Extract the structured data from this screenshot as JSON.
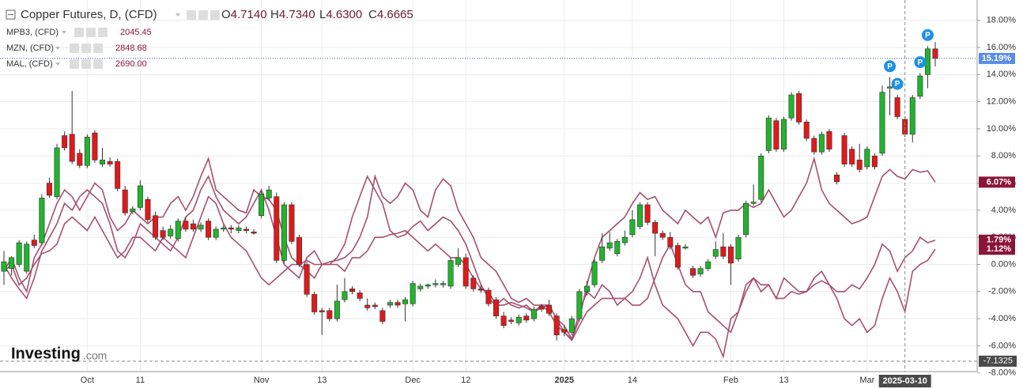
{
  "chart_data": {
    "type": "candlestick",
    "title": "Copper Futures, D, (CFD)",
    "ohlc_labels": [
      {
        "key": "O",
        "value": "4.7140"
      },
      {
        "key": "H",
        "value": "4.7340"
      },
      {
        "key": "L",
        "value": "4.6300"
      },
      {
        "key": "C",
        "value": "4.6665"
      }
    ],
    "categories": [
      null,
      null,
      null,
      null,
      null,
      null,
      null,
      null,
      null,
      null,
      null,
      "Oct",
      null,
      null,
      null,
      null,
      null,
      null,
      "11",
      null,
      null,
      null,
      null,
      null,
      null,
      null,
      null,
      null,
      null,
      null,
      null,
      null,
      null,
      null,
      "Nov",
      null,
      null,
      null,
      null,
      null,
      null,
      null,
      "13",
      null,
      null,
      null,
      null,
      null,
      null,
      null,
      null,
      null,
      null,
      null,
      "Dec",
      null,
      null,
      null,
      null,
      null,
      null,
      "12",
      null,
      null,
      null,
      null,
      null,
      null,
      null,
      null,
      null,
      null,
      null,
      null,
      "2025",
      null,
      null,
      null,
      null,
      null,
      null,
      null,
      null,
      "14",
      null,
      null,
      null,
      null,
      null,
      null,
      null,
      null,
      null,
      null,
      null,
      null,
      "Feb",
      null,
      null,
      null,
      null,
      null,
      null,
      "13",
      null,
      null,
      null,
      null,
      null,
      null,
      null,
      null,
      null,
      null,
      "Mar",
      null,
      null,
      null,
      null,
      null,
      null,
      null,
      null,
      null
    ],
    "ohlc": [
      [
        -0.5,
        1.0,
        -1.5,
        0.2
      ],
      [
        -0.3,
        0.6,
        -0.8,
        0.5
      ],
      [
        0.0,
        1.8,
        -0.2,
        1.6
      ],
      [
        -0.5,
        1.7,
        -0.7,
        1.5
      ],
      [
        1.8,
        2.2,
        1.2,
        1.4
      ],
      [
        1.6,
        5.2,
        1.4,
        4.9
      ],
      [
        6.0,
        6.4,
        4.9,
        5.1
      ],
      [
        5.0,
        8.9,
        4.8,
        8.6
      ],
      [
        9.5,
        9.8,
        8.4,
        8.6
      ],
      [
        9.6,
        12.8,
        7.4,
        7.6
      ],
      [
        8.2,
        8.5,
        7.1,
        7.3
      ],
      [
        7.3,
        9.6,
        7.1,
        9.4
      ],
      [
        9.7,
        9.9,
        7.5,
        7.7
      ],
      [
        7.4,
        8.6,
        7.2,
        7.7
      ],
      [
        7.6,
        7.9,
        7.2,
        7.4
      ],
      [
        7.6,
        7.8,
        5.4,
        5.6
      ],
      [
        5.5,
        5.8,
        3.6,
        3.8
      ],
      [
        3.9,
        4.3,
        3.7,
        4.1
      ],
      [
        4.2,
        6.2,
        4.0,
        5.8
      ],
      [
        4.8,
        5.0,
        3.1,
        3.3
      ],
      [
        3.6,
        3.9,
        1.8,
        2.0
      ],
      [
        2.5,
        2.8,
        1.8,
        2.0
      ],
      [
        2.1,
        2.9,
        1.9,
        2.6
      ],
      [
        1.9,
        3.4,
        1.7,
        3.2
      ],
      [
        3.2,
        3.5,
        2.4,
        2.6
      ],
      [
        3.0,
        3.3,
        2.4,
        2.6
      ],
      [
        2.6,
        3.1,
        2.4,
        2.9
      ],
      [
        3.2,
        3.4,
        1.8,
        2.0
      ],
      [
        2.0,
        2.8,
        1.8,
        2.6
      ],
      [
        2.6,
        2.9,
        2.4,
        2.7
      ],
      [
        2.7,
        2.9,
        2.3,
        2.6
      ],
      [
        2.5,
        2.9,
        2.3,
        2.7
      ],
      [
        2.6,
        2.8,
        2.3,
        2.5
      ],
      [
        2.4,
        2.6,
        2.2,
        2.3
      ],
      [
        3.6,
        5.4,
        3.4,
        5.2
      ],
      [
        4.9,
        5.8,
        4.7,
        5.5
      ],
      [
        5.0,
        5.3,
        0.1,
        0.3
      ],
      [
        0.3,
        4.6,
        0.1,
        4.4
      ],
      [
        4.4,
        4.6,
        1.5,
        1.7
      ],
      [
        2.0,
        2.2,
        -0.2,
        0.0
      ],
      [
        0.0,
        0.2,
        -2.4,
        -2.2
      ],
      [
        -2.2,
        -2.0,
        -3.7,
        -3.5
      ],
      [
        -3.4,
        -3.2,
        -5.2,
        -3.5
      ],
      [
        -3.4,
        -3.2,
        -4.2,
        -4.0
      ],
      [
        -4.0,
        -1.5,
        -4.2,
        -2.7
      ],
      [
        -2.6,
        -1.0,
        -2.8,
        -2.0
      ],
      [
        -1.8,
        -1.6,
        -2.2,
        -2.0
      ],
      [
        -2.1,
        -1.9,
        -2.7,
        -2.5
      ],
      [
        -3.0,
        -2.5,
        -3.4,
        -3.2
      ],
      [
        -3.0,
        -2.8,
        -3.3,
        -3.1
      ],
      [
        -3.4,
        -3.2,
        -4.4,
        -4.2
      ],
      [
        -3.0,
        -2.6,
        -3.2,
        -2.8
      ],
      [
        -2.8,
        -2.6,
        -3.2,
        -3.0
      ],
      [
        -2.9,
        -2.4,
        -4.2,
        -2.6
      ],
      [
        -2.9,
        -1.2,
        -3.1,
        -1.4
      ],
      [
        -1.8,
        -1.4,
        -2.0,
        -1.6
      ],
      [
        -1.6,
        -1.4,
        -1.8,
        -1.5
      ],
      [
        -1.5,
        -1.1,
        -1.7,
        -1.4
      ],
      [
        -1.5,
        -1.2,
        -1.7,
        -1.4
      ],
      [
        -1.6,
        0.5,
        -1.8,
        0.3
      ],
      [
        0.0,
        1.2,
        -0.2,
        0.5
      ],
      [
        0.5,
        0.8,
        -1.8,
        -1.6
      ],
      [
        -1.0,
        -0.8,
        -2.0,
        -1.8
      ],
      [
        -1.8,
        -1.5,
        -2.1,
        -1.9
      ],
      [
        -1.9,
        -1.7,
        -3.1,
        -2.9
      ],
      [
        -2.6,
        -2.4,
        -4.0,
        -3.8
      ],
      [
        -3.8,
        -3.5,
        -4.7,
        -4.5
      ],
      [
        -4.1,
        -3.9,
        -4.4,
        -4.2
      ],
      [
        -4.3,
        -3.7,
        -4.5,
        -3.9
      ],
      [
        -3.8,
        -3.6,
        -4.3,
        -4.1
      ],
      [
        -4.0,
        -3.1,
        -4.2,
        -3.3
      ],
      [
        -3.1,
        -2.9,
        -3.5,
        -3.3
      ],
      [
        -3.0,
        -2.6,
        -3.8,
        -3.6
      ],
      [
        -3.8,
        -3.6,
        -5.6,
        -5.2
      ],
      [
        -4.8,
        -4.5,
        -5.3,
        -5.0
      ],
      [
        -5.0,
        -3.8,
        -5.2,
        -4.0
      ],
      [
        -4.0,
        -1.8,
        -4.2,
        -2.0
      ],
      [
        -2.0,
        -1.2,
        -2.3,
        -1.6
      ],
      [
        -1.5,
        0.4,
        -1.7,
        0.2
      ],
      [
        0.3,
        2.3,
        0.1,
        1.3
      ],
      [
        1.2,
        2.4,
        1.0,
        1.6
      ],
      [
        0.8,
        1.9,
        0.6,
        1.7
      ],
      [
        1.6,
        2.5,
        1.4,
        2.0
      ],
      [
        2.2,
        4.0,
        2.0,
        3.3
      ],
      [
        2.8,
        4.6,
        2.6,
        4.4
      ],
      [
        4.4,
        4.6,
        2.9,
        3.1
      ],
      [
        3.1,
        3.3,
        0.6,
        2.3
      ],
      [
        2.3,
        2.5,
        1.8,
        2.0
      ],
      [
        2.0,
        2.4,
        1.1,
        1.3
      ],
      [
        1.4,
        1.6,
        -0.4,
        -0.2
      ],
      [
        1.2,
        1.5,
        1.1,
        1.3
      ],
      [
        -0.3,
        -0.1,
        -1.0,
        -0.8
      ],
      [
        -0.7,
        -0.1,
        -0.9,
        -0.3
      ],
      [
        -0.3,
        0.4,
        -0.5,
        0.2
      ],
      [
        0.6,
        1.7,
        0.4,
        1.1
      ],
      [
        1.3,
        2.3,
        0.4,
        0.6
      ],
      [
        1.3,
        1.5,
        -1.5,
        0.1
      ],
      [
        0.4,
        2.2,
        0.2,
        2.0
      ],
      [
        2.2,
        4.7,
        2.0,
        4.5
      ],
      [
        4.5,
        5.9,
        4.3,
        4.6
      ],
      [
        4.8,
        8.2,
        4.6,
        8.0
      ],
      [
        8.4,
        11.0,
        8.2,
        10.8
      ],
      [
        10.6,
        10.8,
        8.3,
        8.5
      ],
      [
        8.5,
        10.9,
        8.3,
        10.7
      ],
      [
        10.8,
        12.7,
        10.6,
        12.5
      ],
      [
        12.6,
        12.8,
        10.3,
        10.5
      ],
      [
        10.5,
        10.7,
        9.1,
        9.3
      ],
      [
        9.3,
        9.5,
        8.1,
        8.3
      ],
      [
        8.3,
        9.8,
        8.1,
        9.6
      ],
      [
        9.8,
        10.0,
        8.3,
        8.5
      ],
      [
        6.6,
        6.8,
        5.9,
        6.1
      ],
      [
        9.5,
        9.7,
        7.2,
        7.4
      ],
      [
        8.5,
        8.7,
        7.2,
        7.4
      ],
      [
        7.7,
        8.9,
        6.8,
        7.0
      ],
      [
        7.2,
        8.7,
        7.0,
        8.5
      ],
      [
        8.0,
        8.2,
        7.0,
        7.2
      ],
      [
        8.2,
        13.2,
        8.0,
        12.7
      ],
      [
        13.0,
        13.8,
        11.0,
        13.1
      ],
      [
        12.3,
        12.5,
        10.7,
        10.9
      ],
      [
        10.7,
        10.9,
        9.4,
        9.6
      ],
      [
        9.6,
        12.5,
        9.0,
        12.3
      ],
      [
        12.4,
        14.1,
        12.2,
        13.9
      ],
      [
        14.0,
        16.1,
        13.0,
        15.9
      ],
      [
        15.9,
        16.4,
        14.6,
        15.19
      ]
    ],
    "up_color": "#21b42d",
    "down_color": "#e0191b",
    "last_label": "15.19%",
    "last_color": "#5a8de8",
    "series": [
      {
        "name": "MPB3, (CFD)",
        "quote": "2045.45",
        "color": "#a6506f",
        "last_label": "6.07%",
        "values": [
          -0.5,
          0.5,
          -1.0,
          -2.0,
          0.5,
          1.5,
          3.0,
          4.5,
          5.5,
          5.0,
          4.0,
          5.0,
          6.0,
          5.5,
          3.5,
          2.5,
          3.0,
          4.0,
          3.5,
          3.0,
          3.5,
          3.5,
          4.5,
          5.0,
          4.0,
          5.0,
          6.5,
          7.8,
          5.5,
          5.0,
          4.5,
          4.0,
          3.8,
          5.5,
          5.0,
          4.8,
          4.0,
          2.0,
          0.5,
          0.0,
          0.3,
          0.0,
          0.0,
          0.2,
          0.3,
          0.5,
          1.0,
          2.0,
          3.5,
          6.5,
          5.0,
          4.5,
          5.0,
          6.0,
          5.5,
          4.0,
          3.5,
          5.5,
          6.3,
          5.8,
          4.0,
          3.0,
          2.0,
          0.5,
          0.0,
          -0.5,
          -1.5,
          -2.5,
          -2.8,
          -2.5,
          -3.0,
          -3.0,
          -3.0,
          -4.0,
          -5.0,
          -5.5,
          -4.0,
          -1.5,
          0.5,
          2.0,
          2.5,
          3.0,
          3.5,
          4.5,
          5.3,
          4.8,
          5.0,
          4.0,
          3.5,
          3.0,
          4.0,
          3.5,
          3.0,
          3.5,
          2.0,
          3.8,
          4.0,
          4.0,
          4.5,
          4.2,
          4.5,
          5.5,
          4.5,
          3.5,
          4.0,
          5.0,
          6.0,
          7.8,
          5.5,
          4.5,
          4.0,
          3.5,
          3.0,
          3.2,
          3.5,
          5.0,
          6.5,
          7.0,
          6.5,
          6.3,
          7.0,
          6.8,
          6.9,
          6.07
        ]
      },
      {
        "name": "MZN, (CFD)",
        "quote": "2848.68",
        "color": "#a6506f",
        "last_label": "1.79%",
        "values": [
          0.0,
          -1.0,
          -1.8,
          -2.5,
          -1.0,
          1.0,
          2.0,
          3.0,
          4.5,
          4.0,
          5.0,
          5.5,
          5.0,
          4.5,
          3.0,
          1.0,
          0.5,
          1.5,
          3.0,
          2.5,
          2.0,
          1.5,
          1.0,
          2.0,
          3.5,
          4.0,
          5.5,
          6.5,
          5.0,
          4.0,
          3.5,
          3.0,
          3.5,
          4.5,
          5.5,
          4.0,
          2.0,
          0.0,
          -0.5,
          -1.0,
          0.5,
          1.0,
          0.0,
          0.0,
          0.5,
          1.5,
          3.5,
          5.0,
          6.5,
          5.5,
          4.5,
          2.5,
          2.0,
          2.2,
          2.8,
          3.2,
          2.5,
          3.0,
          3.5,
          3.2,
          2.5,
          1.5,
          0.0,
          -1.5,
          -2.5,
          -3.0,
          -2.5,
          -3.0,
          -3.2,
          -3.0,
          -3.5,
          -3.2,
          -3.0,
          -4.0,
          -4.5,
          -5.5,
          -3.5,
          -2.0,
          -2.5,
          -1.5,
          -2.0,
          -3.0,
          -2.5,
          -3.0,
          -3.0,
          -2.5,
          -1.0,
          0.5,
          1.5,
          0.0,
          -1.5,
          -2.0,
          -2.0,
          -3.5,
          -4.0,
          -4.5,
          -5.0,
          -3.5,
          -1.5,
          -1.0,
          -2.0,
          -1.5,
          -2.5,
          -2.5,
          -2.0,
          -2.2,
          -2.0,
          -1.0,
          -0.5,
          -1.5,
          -2.0,
          -2.0,
          -1.5,
          -1.8,
          -1.0,
          0.0,
          1.5,
          1.0,
          -0.5,
          0.5,
          1.0,
          2.0,
          1.6,
          1.79
        ]
      },
      {
        "name": "MAL, (CFD)",
        "quote": "2690.00",
        "color": "#a6506f",
        "last_label": "1.12%",
        "values": [
          -0.5,
          0.0,
          -1.5,
          -1.0,
          0.0,
          0.8,
          1.0,
          1.5,
          3.0,
          3.5,
          3.0,
          2.5,
          3.5,
          2.5,
          1.5,
          0.5,
          1.0,
          2.0,
          2.0,
          1.5,
          1.0,
          2.0,
          1.5,
          1.0,
          0.5,
          2.0,
          3.5,
          5.0,
          4.5,
          3.0,
          2.0,
          1.5,
          1.0,
          0.0,
          -1.0,
          -1.5,
          -1.0,
          -0.5,
          0.0,
          0.0,
          -0.5,
          -1.0,
          0.0,
          0.0,
          0.0,
          -0.5,
          0.5,
          0.5,
          1.0,
          2.0,
          2.0,
          2.2,
          2.3,
          2.5,
          2.0,
          1.5,
          1.0,
          1.5,
          1.0,
          0.5,
          0.5,
          0.0,
          -1.0,
          -1.8,
          -2.0,
          -3.0,
          -3.0,
          -2.8,
          -3.0,
          -3.2,
          -3.5,
          -3.0,
          -3.5,
          -4.5,
          -5.0,
          -5.6,
          -4.5,
          -3.5,
          -3.0,
          -2.5,
          -2.5,
          -2.5,
          -2.5,
          -2.0,
          -1.0,
          0.5,
          -1.5,
          -3.0,
          -3.5,
          -4.0,
          -5.0,
          -6.0,
          -5.0,
          -5.0,
          -5.5,
          -6.8,
          -4.0,
          -3.5,
          -2.0,
          -1.0,
          -1.5,
          -1.5,
          -2.5,
          -1.0,
          -1.5,
          -2.0,
          -2.0,
          -1.5,
          -1.2,
          -1.5,
          -2.5,
          -4.0,
          -4.5,
          -4.0,
          -5.0,
          -4.5,
          -2.5,
          -1.0,
          -2.0,
          -3.5,
          -0.5,
          0.0,
          0.3,
          1.12
        ]
      }
    ],
    "markers": [
      {
        "at": 117,
        "label": "P"
      },
      {
        "at": 118,
        "label": "P"
      },
      {
        "at": 121,
        "label": "P"
      },
      {
        "at": 122,
        "label": "P"
      }
    ],
    "crosshair": {
      "at": 119,
      "x_label": "2025-03-10",
      "y": -7.1325
    },
    "ylim": [
      -7.9,
      19.5
    ],
    "yticks": [
      {
        "value": 18,
        "label": "18.00%"
      },
      {
        "value": 16,
        "label": "16.00%"
      },
      {
        "value": 14,
        "label": "14.00%"
      },
      {
        "value": 12,
        "label": "12.00%"
      },
      {
        "value": 10,
        "label": "10.00%"
      },
      {
        "value": 8,
        "label": "8.00%"
      },
      {
        "value": 6,
        "label": "6.00%"
      },
      {
        "value": 4,
        "label": "4.00%"
      },
      {
        "value": 2,
        "label": "2.00%"
      },
      {
        "value": 0,
        "label": "0.00%"
      },
      {
        "value": -2,
        "label": "-2.00%"
      },
      {
        "value": -4,
        "label": "-4.00%"
      },
      {
        "value": -6,
        "label": "-6.00%"
      },
      {
        "value": -8,
        "label": "-8.00%"
      }
    ],
    "grid": true,
    "watermark": [
      "Investing",
      ".com"
    ]
  }
}
